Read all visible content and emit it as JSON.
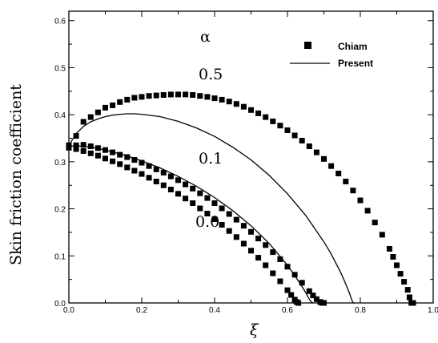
{
  "chart_data": {
    "type": "scatter",
    "xlabel": "ξ",
    "ylabel": "Skin friction coefficient",
    "xlim": [
      0.0,
      1.0
    ],
    "ylim": [
      0.0,
      0.62
    ],
    "x_ticks": [
      "0.0",
      "0.2",
      "0.4",
      "0.6",
      "0.8",
      "1.0"
    ],
    "y_ticks": [
      "0.0",
      "0.1",
      "0.2",
      "0.3",
      "0.4",
      "0.5",
      "0.6"
    ],
    "grid": false,
    "parameter_symbol": "α",
    "legend": {
      "position": "top-right",
      "entries": [
        {
          "label": "Chiam",
          "marker": "square"
        },
        {
          "label": "Present",
          "marker": "line"
        }
      ]
    },
    "series": [
      {
        "name": "Chiam",
        "style": "markers",
        "curve_label": "0.5",
        "x": [
          0.0,
          0.02,
          0.04,
          0.06,
          0.08,
          0.1,
          0.12,
          0.14,
          0.16,
          0.18,
          0.2,
          0.22,
          0.24,
          0.26,
          0.28,
          0.3,
          0.32,
          0.34,
          0.36,
          0.38,
          0.4,
          0.42,
          0.44,
          0.46,
          0.48,
          0.5,
          0.52,
          0.54,
          0.56,
          0.58,
          0.6,
          0.62,
          0.64,
          0.66,
          0.68,
          0.7,
          0.72,
          0.74,
          0.76,
          0.78,
          0.8,
          0.82,
          0.84,
          0.86,
          0.88,
          0.89,
          0.9,
          0.91,
          0.92,
          0.93,
          0.935,
          0.94,
          0.945
        ],
        "y": [
          0.335,
          0.355,
          0.385,
          0.395,
          0.405,
          0.415,
          0.42,
          0.427,
          0.432,
          0.436,
          0.438,
          0.44,
          0.441,
          0.442,
          0.443,
          0.443,
          0.443,
          0.442,
          0.44,
          0.438,
          0.435,
          0.432,
          0.428,
          0.423,
          0.417,
          0.41,
          0.403,
          0.395,
          0.386,
          0.377,
          0.367,
          0.356,
          0.345,
          0.333,
          0.32,
          0.306,
          0.291,
          0.275,
          0.258,
          0.239,
          0.218,
          0.196,
          0.171,
          0.145,
          0.115,
          0.098,
          0.08,
          0.062,
          0.045,
          0.028,
          0.012,
          0.0,
          0.0
        ]
      },
      {
        "name": "Chiam",
        "style": "markers",
        "curve_label": "0.1",
        "x": [
          0.0,
          0.02,
          0.04,
          0.06,
          0.08,
          0.1,
          0.12,
          0.14,
          0.16,
          0.18,
          0.2,
          0.22,
          0.24,
          0.26,
          0.28,
          0.3,
          0.32,
          0.34,
          0.36,
          0.38,
          0.4,
          0.42,
          0.44,
          0.46,
          0.48,
          0.5,
          0.52,
          0.54,
          0.56,
          0.58,
          0.6,
          0.62,
          0.64,
          0.66,
          0.67,
          0.68,
          0.69,
          0.695,
          0.7
        ],
        "y": [
          0.333,
          0.335,
          0.336,
          0.333,
          0.329,
          0.325,
          0.32,
          0.315,
          0.31,
          0.304,
          0.298,
          0.291,
          0.284,
          0.277,
          0.269,
          0.261,
          0.252,
          0.243,
          0.233,
          0.223,
          0.212,
          0.201,
          0.189,
          0.177,
          0.164,
          0.151,
          0.137,
          0.123,
          0.108,
          0.093,
          0.077,
          0.06,
          0.043,
          0.025,
          0.016,
          0.008,
          0.002,
          0.0,
          0.0
        ]
      },
      {
        "name": "Chiam",
        "style": "markers",
        "curve_label": "0.0",
        "x": [
          0.0,
          0.02,
          0.04,
          0.06,
          0.08,
          0.1,
          0.12,
          0.14,
          0.16,
          0.18,
          0.2,
          0.22,
          0.24,
          0.26,
          0.28,
          0.3,
          0.32,
          0.34,
          0.36,
          0.38,
          0.4,
          0.42,
          0.44,
          0.46,
          0.48,
          0.5,
          0.52,
          0.54,
          0.56,
          0.58,
          0.6,
          0.61,
          0.62,
          0.625,
          0.63
        ],
        "y": [
          0.33,
          0.327,
          0.323,
          0.318,
          0.313,
          0.307,
          0.301,
          0.295,
          0.288,
          0.281,
          0.274,
          0.266,
          0.258,
          0.25,
          0.241,
          0.232,
          0.222,
          0.212,
          0.201,
          0.19,
          0.178,
          0.166,
          0.153,
          0.14,
          0.126,
          0.111,
          0.096,
          0.08,
          0.063,
          0.046,
          0.027,
          0.017,
          0.007,
          0.002,
          0.0
        ]
      },
      {
        "name": "Present",
        "style": "line",
        "curve_label": "0.5",
        "x": [
          0.0,
          0.02,
          0.04,
          0.06,
          0.08,
          0.1,
          0.12,
          0.14,
          0.16,
          0.18,
          0.2,
          0.25,
          0.3,
          0.35,
          0.4,
          0.45,
          0.5,
          0.55,
          0.6,
          0.65,
          0.7,
          0.72,
          0.74,
          0.75,
          0.76,
          0.77,
          0.775,
          0.78,
          0.785
        ],
        "y": [
          0.335,
          0.36,
          0.375,
          0.385,
          0.391,
          0.396,
          0.399,
          0.401,
          0.402,
          0.402,
          0.401,
          0.396,
          0.386,
          0.372,
          0.354,
          0.331,
          0.304,
          0.271,
          0.232,
          0.186,
          0.13,
          0.104,
          0.074,
          0.058,
          0.04,
          0.021,
          0.01,
          0.0,
          0.0
        ]
      },
      {
        "name": "Present",
        "style": "line",
        "curve_label": "0.1",
        "x": [
          0.0,
          0.02,
          0.04,
          0.06,
          0.08,
          0.1,
          0.15,
          0.2,
          0.25,
          0.3,
          0.35,
          0.4,
          0.45,
          0.5,
          0.55,
          0.6,
          0.62,
          0.64,
          0.65,
          0.66,
          0.665,
          0.67
        ],
        "y": [
          0.333,
          0.334,
          0.333,
          0.331,
          0.328,
          0.325,
          0.315,
          0.302,
          0.287,
          0.269,
          0.248,
          0.224,
          0.196,
          0.164,
          0.126,
          0.08,
          0.058,
          0.035,
          0.022,
          0.008,
          0.002,
          0.0
        ]
      }
    ]
  }
}
